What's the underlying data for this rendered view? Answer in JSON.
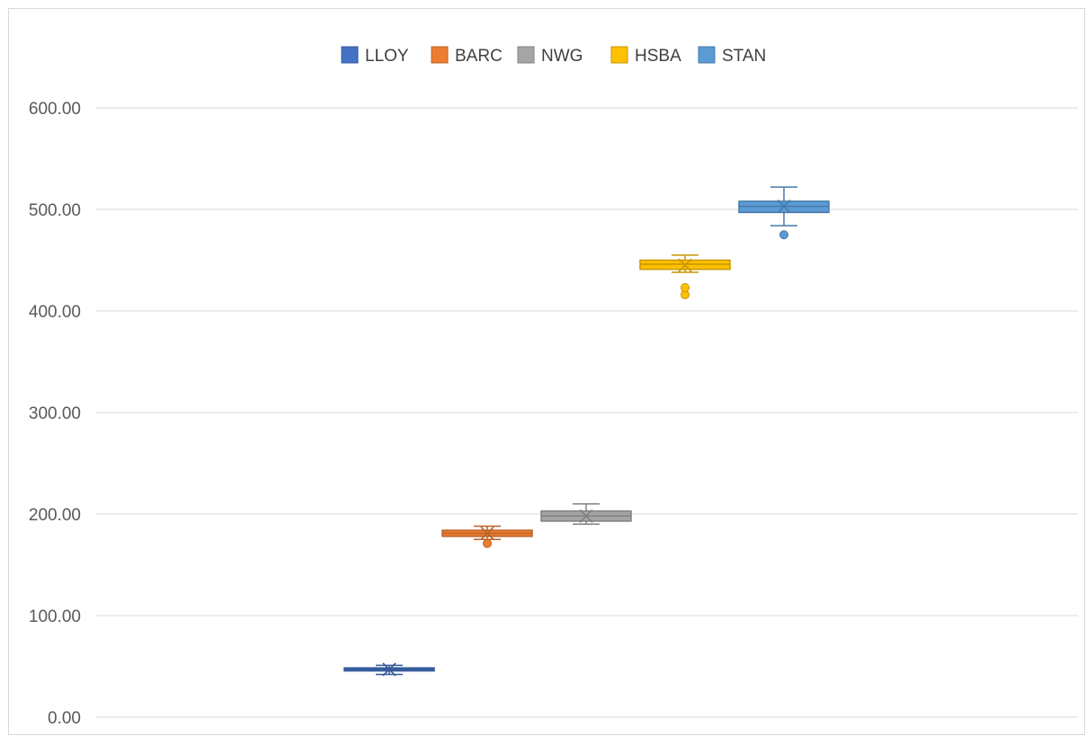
{
  "chart_data": {
    "type": "boxplot",
    "title": "",
    "xlabel": "",
    "ylabel": "",
    "ylim": [
      0,
      600
    ],
    "yticks": [
      0,
      100,
      200,
      300,
      400,
      500,
      600
    ],
    "ytick_labels": [
      "0.00",
      "100.00",
      "200.00",
      "300.00",
      "400.00",
      "500.00",
      "600.00"
    ],
    "grid": true,
    "legend_position": "top-center",
    "series": [
      {
        "name": "LLOY",
        "color": "#4472c4",
        "min": 42,
        "q1": 45.5,
        "median": 47,
        "q3": 48.5,
        "max": 51,
        "mean": 47,
        "outliers": []
      },
      {
        "name": "BARC",
        "color": "#ed7d31",
        "min": 175,
        "q1": 178,
        "median": 181,
        "q3": 184,
        "max": 188,
        "mean": 181,
        "outliers": [
          171
        ]
      },
      {
        "name": "NWG",
        "color": "#a5a5a5",
        "min": 190,
        "q1": 193,
        "median": 198,
        "q3": 203,
        "max": 210,
        "mean": 198,
        "outliers": []
      },
      {
        "name": "HSBA",
        "color": "#ffc000",
        "min": 438,
        "q1": 441,
        "median": 446,
        "q3": 450,
        "max": 455,
        "mean": 445,
        "outliers": [
          416,
          423
        ]
      },
      {
        "name": "STAN",
        "color": "#5b9bd5",
        "min": 484,
        "q1": 497,
        "median": 503,
        "q3": 508,
        "max": 522,
        "mean": 503,
        "outliers": [
          475
        ]
      }
    ]
  }
}
